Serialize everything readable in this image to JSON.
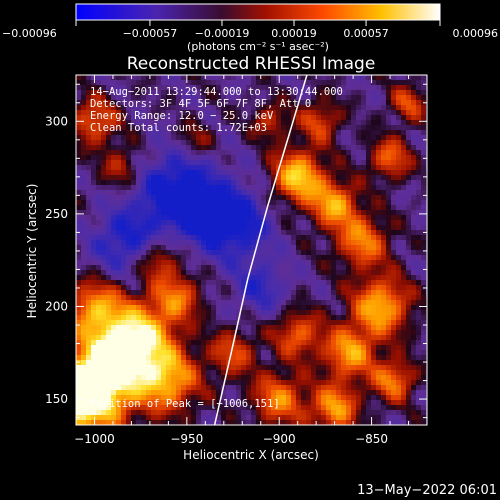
{
  "chart_data": {
    "type": "heatmap",
    "title": "Reconstructed RHESSI Image",
    "xlabel": "Heliocentric X (arcsec)",
    "ylabel": "Heliocentric Y (arcsec)",
    "xlim": [
      -1010,
      -820
    ],
    "ylim": [
      136,
      325
    ],
    "x_ticks": [
      -1000,
      -950,
      -900,
      -850
    ],
    "x_tick_labels": [
      "−1000",
      "−950",
      "−900",
      "−850"
    ],
    "y_ticks": [
      150,
      200,
      250,
      300
    ],
    "y_tick_labels": [
      "150",
      "200",
      "250",
      "300"
    ],
    "colorbar": {
      "colormap": "blue-purple-red-orange-yellow-white",
      "range": [
        -0.00096,
        0.00096
      ],
      "ticks": [
        -0.00096,
        -0.00057,
        -0.00019,
        0.00019,
        0.00057,
        0.00096
      ],
      "tick_labels": [
        "−0.00096",
        "−0.00057",
        "−0.00019",
        "0.00019",
        "0.00057",
        "0.00096"
      ],
      "unit_label": "(photons cm⁻² s⁻¹ asec⁻²)"
    },
    "annotations": [
      "14−Aug−2011 13:29:44.000 to 13:30:44.000",
      "Detectors: 3F 4F 5F 6F 7F 8F, Att 0",
      "Energy Range: 12.0 − 25.0 keV",
      "Clean     Total counts: 1.72E+03"
    ],
    "peak_label": "Position of Peak = [−1006,151]",
    "peak": [
      -1006,
      151
    ],
    "limb_curve": [
      [
        -935,
        136
      ],
      [
        -926,
        175
      ],
      [
        -917,
        215
      ],
      [
        -906,
        255
      ],
      [
        -894,
        295
      ],
      [
        -885,
        325
      ]
    ],
    "colors": {
      "background": "#000000",
      "limb": "#ffffff",
      "colormap_stops": [
        "#0000ff",
        "#5a2a9a",
        "#1a0010",
        "#c81400",
        "#ff6a00",
        "#ffd200",
        "#ffffff"
      ]
    },
    "grid": false
  },
  "footer": {
    "timestamp": "13−May−2022 06:01"
  }
}
